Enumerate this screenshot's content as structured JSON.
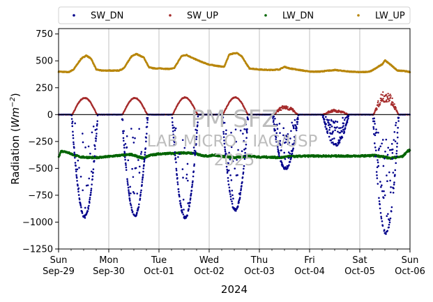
{
  "chart_data": {
    "type": "scatter",
    "title": "",
    "xlabel": "2024",
    "ylabel_prefix": "Radiation (",
    "ylabel_unit": "Wm",
    "ylabel_exp": "−2",
    "ylabel_suffix": ")",
    "ylim": [
      -1250,
      800
    ],
    "yticks": [
      750,
      500,
      250,
      0,
      -250,
      -500,
      -750,
      -1000,
      -1250
    ],
    "ytick_labels": [
      "750",
      "500",
      "250",
      "0",
      "−250",
      "−500",
      "−750",
      "−1000",
      "−1250"
    ],
    "xlim": [
      0,
      7
    ],
    "xticks": [
      {
        "day": 0,
        "line1": "Sun",
        "line2": "Sep-29"
      },
      {
        "day": 1,
        "line1": "Mon",
        "line2": "Sep-30"
      },
      {
        "day": 2,
        "line1": "Tue",
        "line2": "Oct-01"
      },
      {
        "day": 3,
        "line1": "Wed",
        "line2": "Oct-02"
      },
      {
        "day": 4,
        "line1": "Thu",
        "line2": "Oct-03"
      },
      {
        "day": 5,
        "line1": "Fri",
        "line2": "Oct-04"
      },
      {
        "day": 6,
        "line1": "Sat",
        "line2": "Oct-05"
      },
      {
        "day": 7,
        "line1": "Sun",
        "line2": "Oct-06"
      }
    ],
    "grid": "vertical",
    "zero_line": 0,
    "legend_position": "top",
    "series": [
      {
        "name": "SW_DN",
        "color": "#00008b",
        "day_minimum": [
          -950,
          -940,
          -960,
          -885,
          -500,
          -280,
          -1100
        ]
      },
      {
        "name": "SW_UP",
        "color": "#a52a2a",
        "day_peak": [
          155,
          155,
          160,
          160,
          75,
          40,
          195
        ]
      },
      {
        "name": "LW_DN",
        "color": "#006400",
        "points": [
          [
            0,
            -395
          ],
          [
            0.05,
            -340
          ],
          [
            0.15,
            -345
          ],
          [
            0.3,
            -375
          ],
          [
            0.45,
            -395
          ],
          [
            0.7,
            -400
          ],
          [
            0.9,
            -395
          ],
          [
            1.0,
            -390
          ],
          [
            1.2,
            -380
          ],
          [
            1.45,
            -370
          ],
          [
            1.6,
            -395
          ],
          [
            1.7,
            -405
          ],
          [
            1.8,
            -380
          ],
          [
            2.0,
            -365
          ],
          [
            2.3,
            -360
          ],
          [
            2.5,
            -355
          ],
          [
            2.7,
            -360
          ],
          [
            2.85,
            -380
          ],
          [
            3.0,
            -385
          ],
          [
            3.1,
            -375
          ],
          [
            3.3,
            -390
          ],
          [
            3.5,
            -400
          ],
          [
            3.6,
            -395
          ],
          [
            3.8,
            -385
          ],
          [
            4.0,
            -395
          ],
          [
            4.2,
            -395
          ],
          [
            4.4,
            -400
          ],
          [
            4.6,
            -390
          ],
          [
            5.0,
            -385
          ],
          [
            5.3,
            -385
          ],
          [
            5.6,
            -385
          ],
          [
            6.0,
            -385
          ],
          [
            6.3,
            -380
          ],
          [
            6.45,
            -390
          ],
          [
            6.6,
            -405
          ],
          [
            6.85,
            -390
          ],
          [
            6.95,
            -340
          ],
          [
            7.0,
            -330
          ]
        ]
      },
      {
        "name": "LW_UP",
        "color": "#b8860b",
        "points": [
          [
            0,
            400
          ],
          [
            0.2,
            395
          ],
          [
            0.3,
            420
          ],
          [
            0.45,
            520
          ],
          [
            0.55,
            550
          ],
          [
            0.65,
            520
          ],
          [
            0.75,
            420
          ],
          [
            0.85,
            410
          ],
          [
            1.0,
            410
          ],
          [
            1.2,
            410
          ],
          [
            1.3,
            430
          ],
          [
            1.45,
            540
          ],
          [
            1.55,
            565
          ],
          [
            1.7,
            530
          ],
          [
            1.8,
            440
          ],
          [
            1.9,
            430
          ],
          [
            2.0,
            430
          ],
          [
            2.2,
            425
          ],
          [
            2.3,
            430
          ],
          [
            2.45,
            545
          ],
          [
            2.55,
            555
          ],
          [
            2.7,
            520
          ],
          [
            2.85,
            490
          ],
          [
            3.0,
            465
          ],
          [
            3.2,
            450
          ],
          [
            3.3,
            445
          ],
          [
            3.4,
            560
          ],
          [
            3.55,
            575
          ],
          [
            3.65,
            540
          ],
          [
            3.8,
            430
          ],
          [
            4.0,
            420
          ],
          [
            4.2,
            415
          ],
          [
            4.4,
            420
          ],
          [
            4.5,
            445
          ],
          [
            4.6,
            430
          ],
          [
            4.8,
            415
          ],
          [
            5.0,
            400
          ],
          [
            5.2,
            400
          ],
          [
            5.4,
            410
          ],
          [
            5.5,
            415
          ],
          [
            5.6,
            410
          ],
          [
            5.8,
            400
          ],
          [
            6.0,
            395
          ],
          [
            6.2,
            400
          ],
          [
            6.3,
            425
          ],
          [
            6.45,
            470
          ],
          [
            6.5,
            505
          ],
          [
            6.6,
            470
          ],
          [
            6.75,
            410
          ],
          [
            6.9,
            405
          ],
          [
            7.0,
            395
          ]
        ]
      }
    ],
    "watermark": {
      "line1": "PM SFZ",
      "line2": "LAB MICRO - IAG/USP",
      "line3": "2025"
    }
  }
}
